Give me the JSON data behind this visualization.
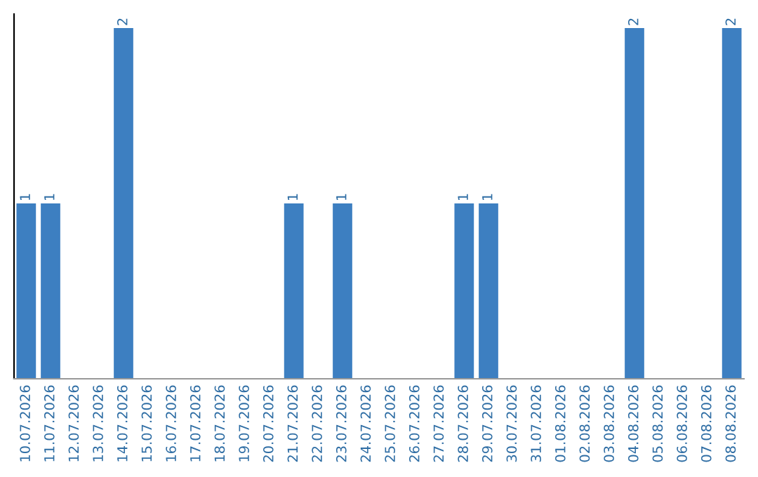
{
  "chart_data": {
    "type": "bar",
    "categories": [
      "10.07.2026",
      "11.07.2026",
      "12.07.2026",
      "13.07.2026",
      "14.07.2026",
      "15.07.2026",
      "16.07.2026",
      "17.07.2026",
      "18.07.2026",
      "19.07.2026",
      "20.07.2026",
      "21.07.2026",
      "22.07.2026",
      "23.07.2026",
      "24.07.2026",
      "25.07.2026",
      "26.07.2026",
      "27.07.2026",
      "28.07.2026",
      "29.07.2026",
      "30.07.2026",
      "31.07.2026",
      "01.08.2026",
      "02.08.2026",
      "03.08.2026",
      "04.08.2026",
      "05.08.2026",
      "06.08.2026",
      "07.08.2026",
      "08.08.2026"
    ],
    "values": [
      1,
      1,
      0,
      0,
      2,
      0,
      0,
      0,
      0,
      0,
      0,
      1,
      0,
      1,
      0,
      0,
      0,
      0,
      1,
      1,
      0,
      0,
      0,
      0,
      0,
      2,
      0,
      0,
      0,
      2
    ],
    "value_labels": [
      "1",
      "1",
      null,
      null,
      "2",
      null,
      null,
      null,
      null,
      null,
      null,
      "1",
      null,
      "1",
      null,
      null,
      null,
      null,
      "1",
      "1",
      null,
      null,
      null,
      null,
      null,
      "2",
      null,
      null,
      null,
      "2"
    ],
    "color": "#3d7fc1",
    "grid": false,
    "legend": false
  }
}
